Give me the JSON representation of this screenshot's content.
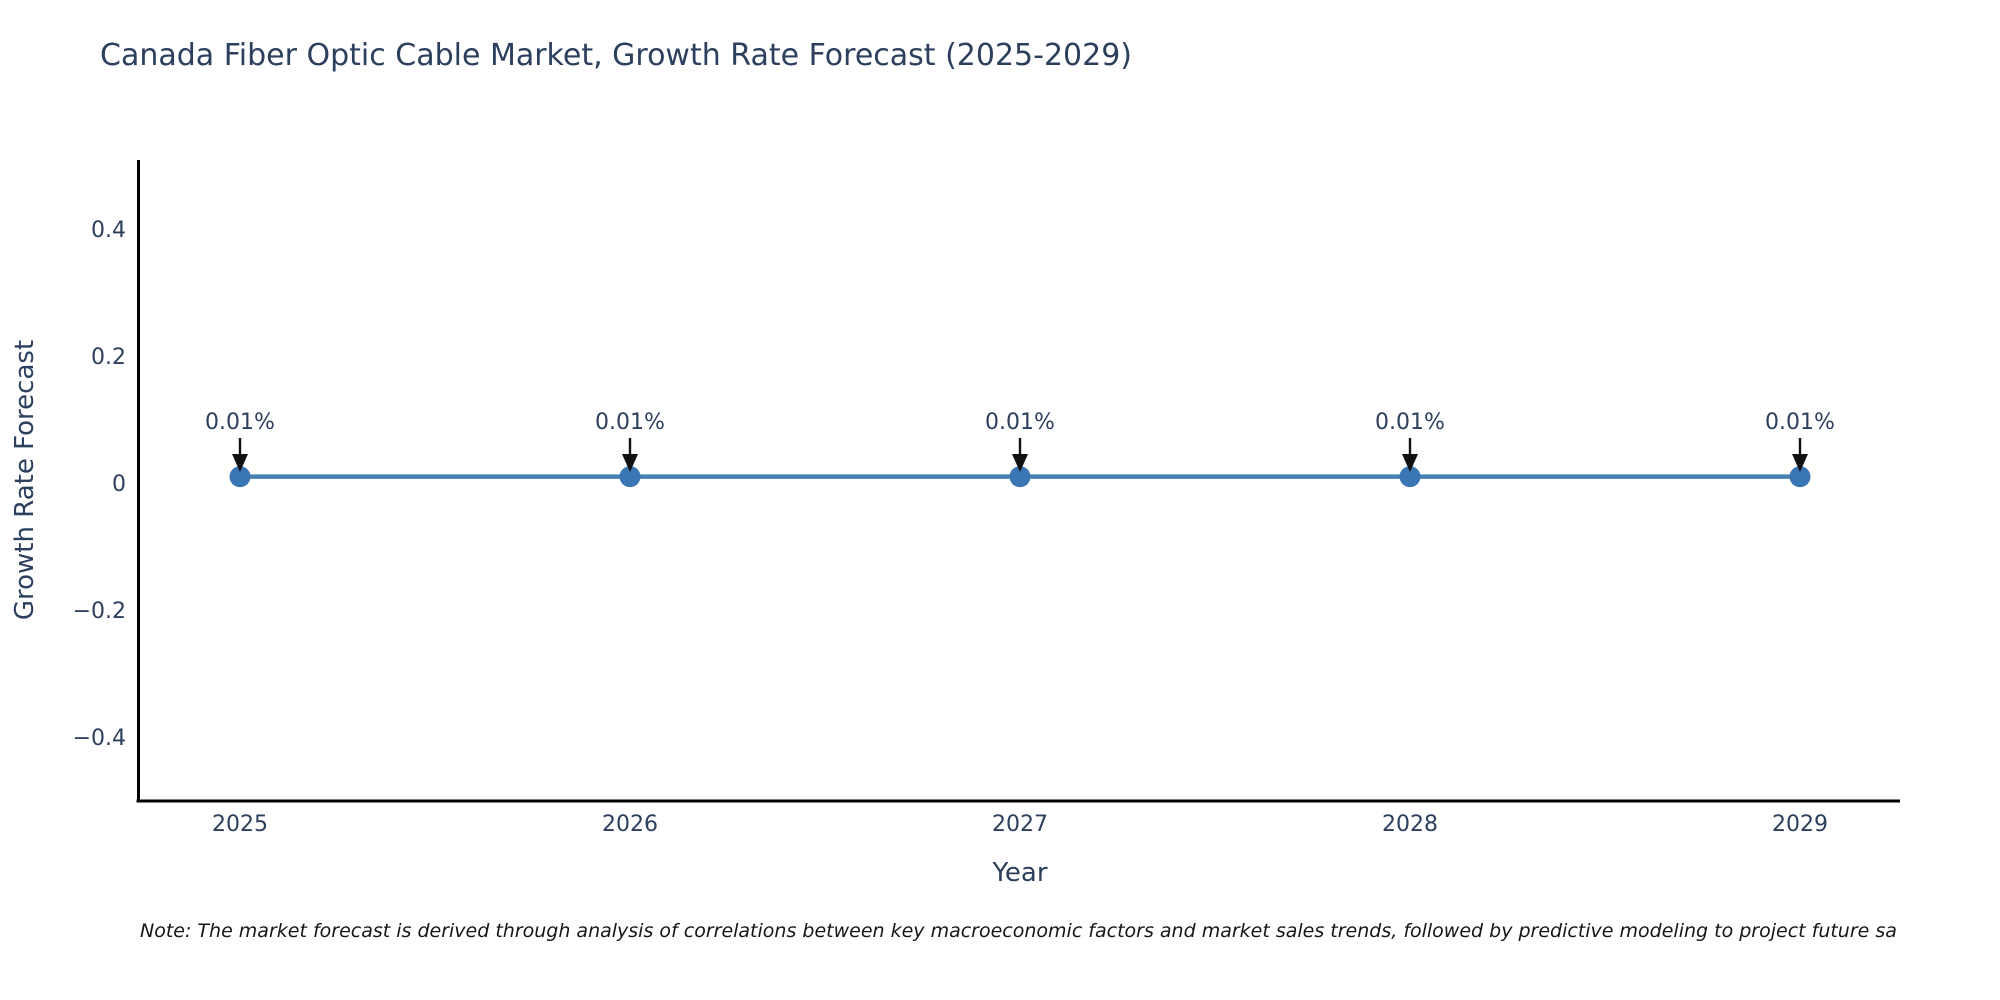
{
  "title": "Canada Fiber Optic Cable Market, Growth Rate Forecast (2025-2029)",
  "note": "Note: The market forecast is derived through analysis of correlations between key macroeconomic factors and market sales trends, followed by predictive modeling to project future sa",
  "chart_data": {
    "type": "line",
    "title": "Canada Fiber Optic Cable Market, Growth Rate Forecast (2025-2029)",
    "xlabel": "Year",
    "ylabel": "Growth Rate Forecast",
    "x": [
      2025,
      2026,
      2027,
      2028,
      2029
    ],
    "x_tick_labels": [
      "2025",
      "2026",
      "2027",
      "2028",
      "2029"
    ],
    "series": [
      {
        "name": "Growth Rate Forecast",
        "values": [
          0.01,
          0.01,
          0.01,
          0.01,
          0.01
        ]
      }
    ],
    "point_labels": [
      "0.01%",
      "0.01%",
      "0.01%",
      "0.01%",
      "0.01%"
    ],
    "yticks": {
      "values": [
        0.4,
        0.2,
        0,
        -0.2,
        -0.4
      ],
      "labels": [
        "0.4",
        "0.2",
        "0",
        "−0.2",
        "−0.4"
      ]
    },
    "ylim": [
      -0.5,
      0.5
    ],
    "grid": false,
    "legend": false,
    "colors": {
      "line": "#4682b4",
      "marker": "#3a76b4",
      "arrow": "#111111",
      "text": "#2c3f5d",
      "axis": "#000000"
    }
  }
}
